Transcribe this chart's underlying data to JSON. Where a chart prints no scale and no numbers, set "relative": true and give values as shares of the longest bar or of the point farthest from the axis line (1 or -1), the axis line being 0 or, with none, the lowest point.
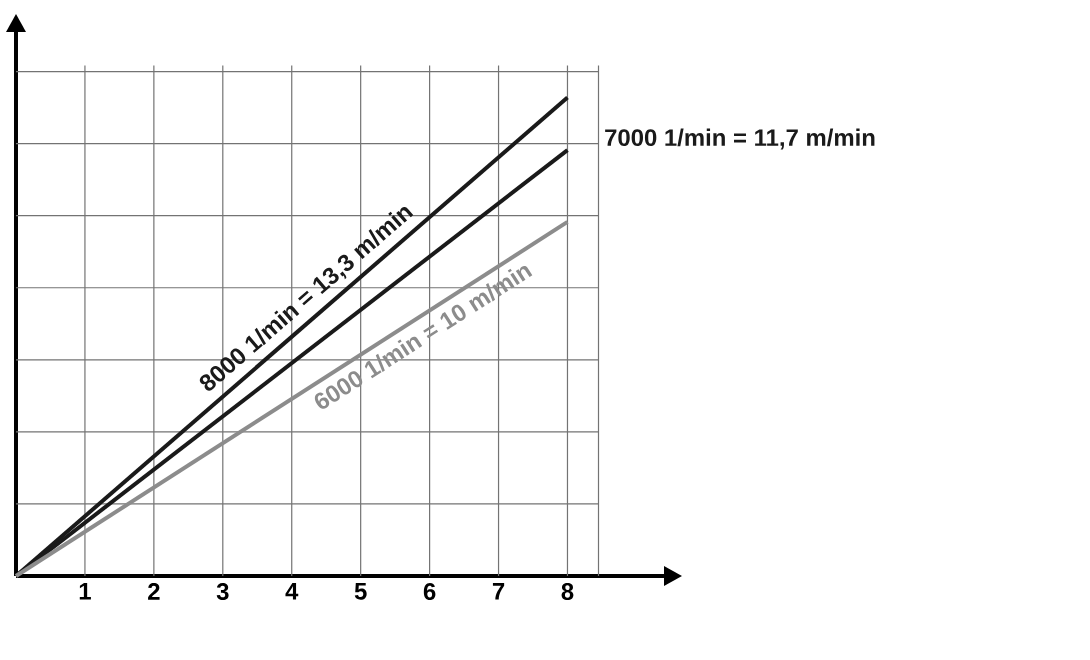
{
  "chart_data": {
    "type": "line",
    "relative": true,
    "x": [
      0,
      8
    ],
    "xlim": [
      0,
      9.4
    ],
    "xticks": [
      1,
      2,
      3,
      4,
      5,
      6,
      7,
      8
    ],
    "grid": true,
    "marker": "none",
    "line_style": "solid",
    "series": [
      {
        "name": "8000 1/min = 13,3 m/min",
        "color": "#1a1a1a",
        "values": [
          0,
          1
        ]
      },
      {
        "name": "7000 1/min = 11,7 m/min",
        "color": "#1a1a1a",
        "values": [
          0,
          0.89
        ]
      },
      {
        "name": "6000 1/min = 10 m/min",
        "color": "#8c8c8c",
        "values": [
          0,
          0.74
        ]
      }
    ]
  }
}
